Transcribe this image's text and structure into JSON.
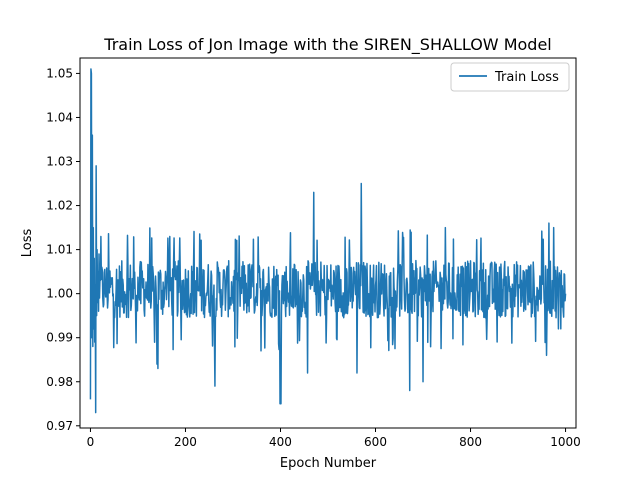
{
  "chart_data": {
    "type": "line",
    "title": "Train Loss of Jon Image with the SIREN_SHALLOW Model",
    "xlabel": "Epoch Number",
    "ylabel": "Loss",
    "xlim": [
      -22,
      1022
    ],
    "ylim": [
      0.9695,
      1.0535
    ],
    "xticks": [
      0,
      200,
      400,
      600,
      800,
      1000
    ],
    "xtick_labels": [
      "0",
      "200",
      "400",
      "600",
      "800",
      "1000"
    ],
    "yticks": [
      0.97,
      0.98,
      0.99,
      1.0,
      1.01,
      1.02,
      1.03,
      1.04,
      1.05
    ],
    "ytick_labels": [
      "0.97",
      "0.98",
      "0.99",
      "1.00",
      "1.01",
      "1.02",
      "1.03",
      "1.04",
      "1.05"
    ],
    "grid": false,
    "legend": {
      "position": "top-right",
      "entries": [
        "Train Loss"
      ]
    },
    "series": [
      {
        "name": "Train Loss",
        "color": "#1f77b4",
        "anchors": [
          [
            0,
            0.976
          ],
          [
            1,
            1.051
          ],
          [
            2,
            1.05
          ],
          [
            3,
            0.99
          ],
          [
            4,
            1.036
          ],
          [
            5,
            0.988
          ],
          [
            6,
            1.015
          ],
          [
            7,
            0.992
          ],
          [
            8,
            1.008
          ],
          [
            9,
            0.989
          ],
          [
            10,
            1.002
          ],
          [
            11,
            0.973
          ],
          [
            12,
            1.029
          ],
          [
            13,
            0.995
          ],
          [
            14,
            1.01
          ],
          [
            15,
            0.998
          ],
          [
            16,
            1.005
          ],
          [
            17,
            0.996
          ],
          [
            18,
            1.009
          ],
          [
            19,
            0.999
          ],
          [
            20,
            1.003
          ],
          [
            140,
            0.984
          ],
          [
            142,
            0.983
          ],
          [
            262,
            0.979
          ],
          [
            399,
            0.975
          ],
          [
            401,
            0.975
          ],
          [
            457,
            0.982
          ],
          [
            470,
            1.023
          ],
          [
            561,
            0.982
          ],
          [
            570,
            1.025
          ],
          [
            672,
            0.978
          ],
          [
            700,
            0.98
          ],
          [
            960,
            0.986
          ],
          [
            965,
            1.016
          ],
          [
            975,
            1.015
          ],
          [
            985,
            0.992
          ],
          [
            990,
            0.992
          ],
          [
            1000,
            1.0
          ]
        ],
        "noise": {
          "center": 1.001,
          "amplitude": 0.0065,
          "extreme_low": 0.987,
          "extreme_high": 1.015
        }
      }
    ]
  }
}
